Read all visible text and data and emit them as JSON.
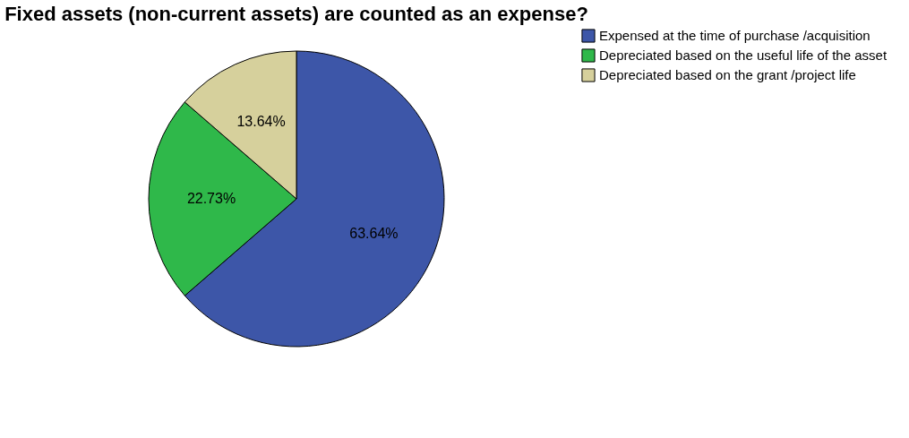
{
  "chart_data": {
    "type": "pie",
    "title": "Fixed assets (non-current assets) are counted as an expense?",
    "categories": [
      "Expensed at the time of purchase /acquisition",
      "Depreciated based on the useful life of the asset",
      "Depreciated based on the grant /project life"
    ],
    "values": [
      63.64,
      22.73,
      13.64
    ],
    "colors": [
      "#3d56a8",
      "#2fb84a",
      "#d6d09c"
    ],
    "value_labels": [
      "63.64%",
      "22.73%",
      "13.64%"
    ],
    "legend": "right"
  }
}
